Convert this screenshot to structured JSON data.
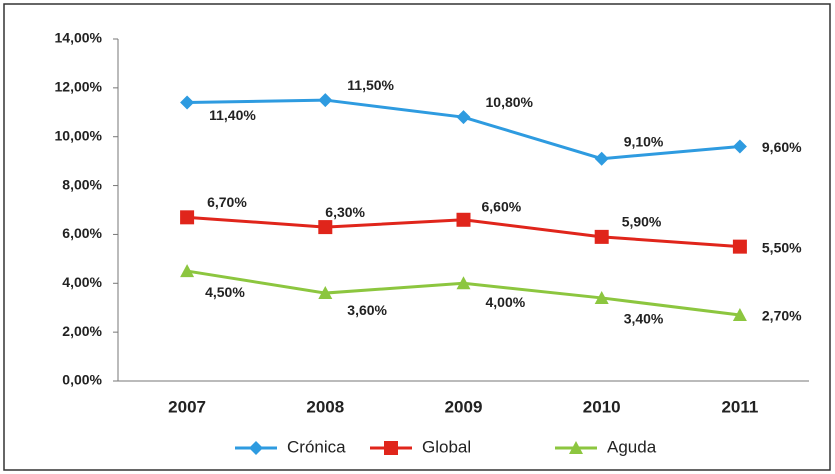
{
  "chart_data": {
    "type": "line",
    "categories": [
      "2007",
      "2008",
      "2009",
      "2010",
      "2011"
    ],
    "series": [
      {
        "name": "Crónica",
        "color": "#2e9be0",
        "marker": "diamond",
        "values": [
          11.4,
          11.5,
          10.8,
          9.1,
          9.6
        ],
        "value_labels": [
          "11,40%",
          "11,50%",
          "10,80%",
          "9,10%",
          "9,60%"
        ]
      },
      {
        "name": "Global",
        "color": "#e0251b",
        "marker": "square",
        "values": [
          6.7,
          6.3,
          6.6,
          5.9,
          5.5
        ],
        "value_labels": [
          "6,70%",
          "6,30%",
          "6,60%",
          "5,90%",
          "5,50%"
        ]
      },
      {
        "name": "Aguda",
        "color": "#8cc63f",
        "marker": "triangle",
        "values": [
          4.5,
          3.6,
          4.0,
          3.4,
          2.7
        ],
        "value_labels": [
          "4,50%",
          "3,60%",
          "4,00%",
          "3,40%",
          "2,70%"
        ]
      }
    ],
    "ylim": [
      0,
      14
    ],
    "yticks": [
      {
        "value": 0,
        "label": "0,00%"
      },
      {
        "value": 2,
        "label": "2,00%"
      },
      {
        "value": 4,
        "label": "4,00%"
      },
      {
        "value": 6,
        "label": "6,00%"
      },
      {
        "value": 8,
        "label": "8,00%"
      },
      {
        "value": 10,
        "label": "10,00%"
      },
      {
        "value": 12,
        "label": "12,00%"
      },
      {
        "value": 14,
        "label": "14,00%"
      }
    ],
    "grid": false,
    "legend": "bottom"
  }
}
